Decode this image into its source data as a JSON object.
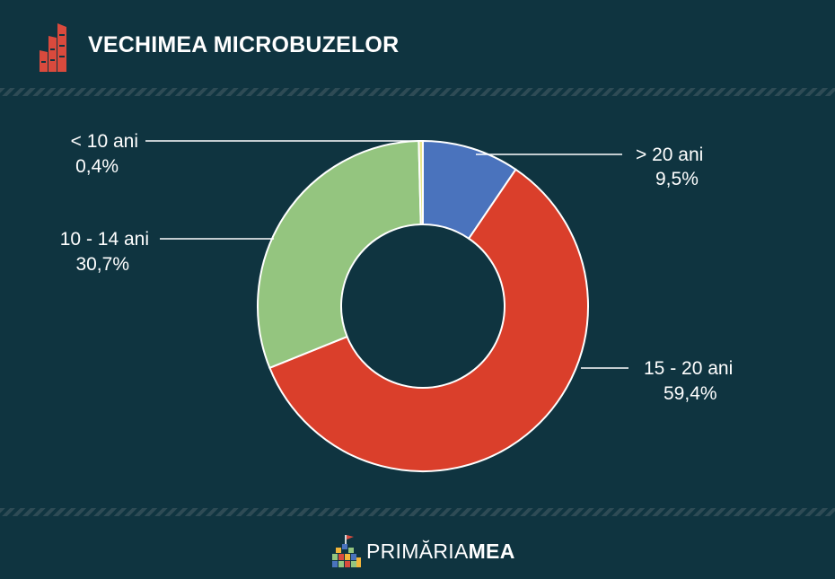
{
  "header": {
    "title": "VECHIMEA MICROBUZELOR",
    "logo_icon": "building-logo-icon",
    "logo_color": "#d94a3d"
  },
  "chart_data": {
    "type": "pie",
    "variant": "donut",
    "title": "VECHIMEA MICROBUZELOR",
    "slices": [
      {
        "label": "> 20 ani",
        "value": 9.5,
        "value_label": "9,5%",
        "color": "#4a73bd"
      },
      {
        "label": "15 - 20 ani",
        "value": 59.4,
        "value_label": "59,4%",
        "color": "#da3f2b"
      },
      {
        "label": "10 - 14 ani",
        "value": 30.7,
        "value_label": "30,7%",
        "color": "#94c57f"
      },
      {
        "label": "< 10 ani",
        "value": 0.4,
        "value_label": "0,4%",
        "color": "#e8e48a"
      }
    ],
    "start_angle": "12 o'clock",
    "direction": "clockwise",
    "legend": "none"
  },
  "footer": {
    "brand_part1": "PRIMĂRIA",
    "brand_part2": "MEA",
    "brand_icon": "colorful-building-icon"
  }
}
